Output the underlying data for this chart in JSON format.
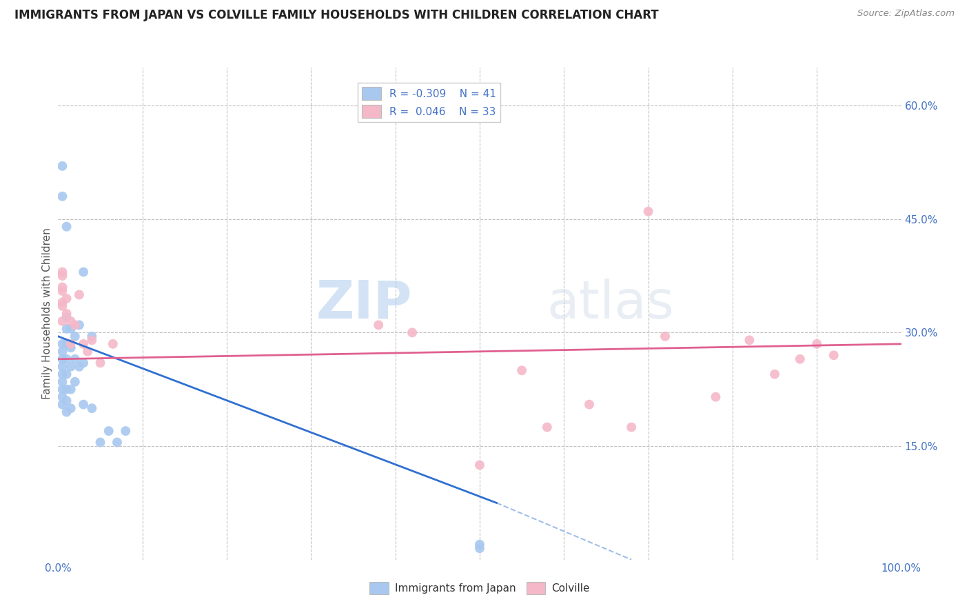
{
  "title": "IMMIGRANTS FROM JAPAN VS COLVILLE FAMILY HOUSEHOLDS WITH CHILDREN CORRELATION CHART",
  "source": "Source: ZipAtlas.com",
  "ylabel": "Family Households with Children",
  "xlim": [
    0.0,
    1.0
  ],
  "ylim": [
    0.0,
    0.65
  ],
  "blue_color": "#a8c8f0",
  "pink_color": "#f5b8c8",
  "blue_line_color": "#3070d0",
  "pink_line_color": "#e06090",
  "blue_scatter_x": [
    0.005,
    0.005,
    0.005,
    0.005,
    0.005,
    0.005,
    0.005,
    0.005,
    0.005,
    0.01,
    0.01,
    0.01,
    0.01,
    0.01,
    0.01,
    0.01,
    0.01,
    0.015,
    0.015,
    0.015,
    0.015,
    0.015,
    0.02,
    0.02,
    0.02,
    0.025,
    0.025,
    0.03,
    0.03,
    0.03,
    0.04,
    0.04,
    0.05,
    0.06,
    0.07,
    0.08,
    0.5,
    0.5,
    0.005,
    0.005,
    0.01
  ],
  "blue_scatter_y": [
    0.285,
    0.275,
    0.265,
    0.255,
    0.245,
    0.235,
    0.225,
    0.215,
    0.205,
    0.32,
    0.305,
    0.285,
    0.265,
    0.245,
    0.225,
    0.21,
    0.195,
    0.305,
    0.28,
    0.255,
    0.225,
    0.2,
    0.295,
    0.265,
    0.235,
    0.31,
    0.255,
    0.38,
    0.26,
    0.205,
    0.295,
    0.2,
    0.155,
    0.17,
    0.155,
    0.17,
    0.02,
    0.015,
    0.52,
    0.48,
    0.44
  ],
  "pink_scatter_x": [
    0.005,
    0.005,
    0.005,
    0.005,
    0.01,
    0.01,
    0.015,
    0.015,
    0.02,
    0.025,
    0.03,
    0.035,
    0.04,
    0.05,
    0.065,
    0.38,
    0.42,
    0.5,
    0.55,
    0.58,
    0.63,
    0.68,
    0.7,
    0.72,
    0.78,
    0.82,
    0.85,
    0.88,
    0.9,
    0.92,
    0.005,
    0.005,
    0.005
  ],
  "pink_scatter_y": [
    0.375,
    0.355,
    0.335,
    0.315,
    0.345,
    0.325,
    0.315,
    0.285,
    0.31,
    0.35,
    0.285,
    0.275,
    0.29,
    0.26,
    0.285,
    0.31,
    0.3,
    0.125,
    0.25,
    0.175,
    0.205,
    0.175,
    0.46,
    0.295,
    0.215,
    0.29,
    0.245,
    0.265,
    0.285,
    0.27,
    0.38,
    0.36,
    0.34
  ]
}
